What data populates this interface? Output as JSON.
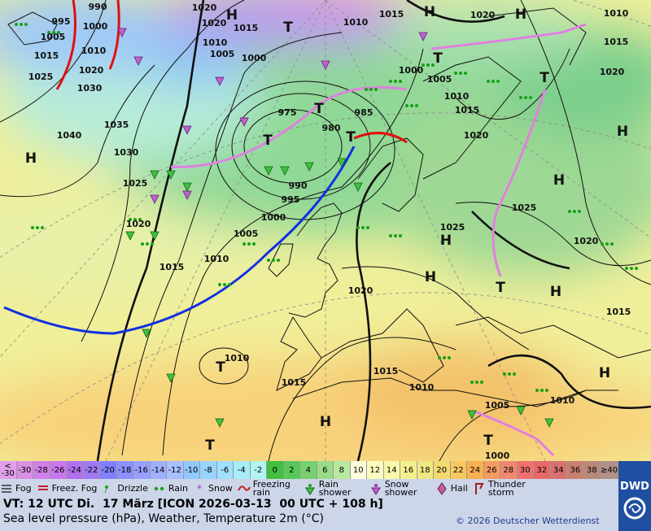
{
  "map": {
    "pressure_labels": [
      "990",
      "1000",
      "995",
      "1005",
      "1015",
      "1010",
      "1025",
      "1020",
      "1030",
      "1035",
      "1040",
      "1030",
      "1025",
      "1020",
      "1015",
      "1010",
      "1005",
      "1000",
      "995",
      "990",
      "980",
      "975",
      "985",
      "1000",
      "1005",
      "1010",
      "1020",
      "1020",
      "1015",
      "1010",
      "1015",
      "1020",
      "1010",
      "1015",
      "1020",
      "1000",
      "1005",
      "1010",
      "1015",
      "1020",
      "1025",
      "1025",
      "1020",
      "1015",
      "1020",
      "1015",
      "1015",
      "1010",
      "1010",
      "1005",
      "1000",
      "1010"
    ],
    "centers": [
      "H",
      "H",
      "T",
      "H",
      "H",
      "T",
      "T",
      "T",
      "T",
      "T",
      "H",
      "H",
      "H",
      "H",
      "T",
      "H",
      "T",
      "H",
      "T",
      "T",
      "H"
    ]
  },
  "scale": [
    {
      "label": "< -30",
      "color": "#e0a0e8"
    },
    {
      "label": "-30",
      "color": "#d890e4"
    },
    {
      "label": "-28",
      "color": "#d080e8"
    },
    {
      "label": "-26",
      "color": "#c878ec"
    },
    {
      "label": "-24",
      "color": "#b070f0"
    },
    {
      "label": "-22",
      "color": "#a078f4"
    },
    {
      "label": "-20",
      "color": "#8080ff"
    },
    {
      "label": "-18",
      "color": "#8c90ff"
    },
    {
      "label": "-16",
      "color": "#98a0ff"
    },
    {
      "label": "-14",
      "color": "#a0b0ff"
    },
    {
      "label": "-12",
      "color": "#a8c0ff"
    },
    {
      "label": "-10",
      "color": "#90c8ff"
    },
    {
      "label": "-8",
      "color": "#98d4ff"
    },
    {
      "label": "-6",
      "color": "#a0e0ff"
    },
    {
      "label": "-4",
      "color": "#a8ecf8"
    },
    {
      "label": "-2",
      "color": "#b0f4f0"
    },
    {
      "label": "0",
      "color": "#40c040"
    },
    {
      "label": "2",
      "color": "#58c858"
    },
    {
      "label": "4",
      "color": "#78d070"
    },
    {
      "label": "6",
      "color": "#98dc88"
    },
    {
      "label": "8",
      "color": "#b8e8a0"
    },
    {
      "label": "10",
      "color": "#ffffe0"
    },
    {
      "label": "12",
      "color": "#fcfcc0"
    },
    {
      "label": "14",
      "color": "#f8f8a8"
    },
    {
      "label": "16",
      "color": "#f4f090"
    },
    {
      "label": "18",
      "color": "#f0e880"
    },
    {
      "label": "20",
      "color": "#f4d870"
    },
    {
      "label": "22",
      "color": "#f8c860"
    },
    {
      "label": "24",
      "color": "#f8b050"
    },
    {
      "label": "26",
      "color": "#f49c60"
    },
    {
      "label": "28",
      "color": "#f08870"
    },
    {
      "label": "30",
      "color": "#f07070"
    },
    {
      "label": "32",
      "color": "#e86868"
    },
    {
      "label": "34",
      "color": "#d87070"
    },
    {
      "label": "36",
      "color": "#c88070"
    },
    {
      "label": "38",
      "color": "#b88878"
    },
    {
      "label": "≥40",
      "color": "#b09088"
    }
  ],
  "legend": [
    "Fog",
    "Freez. Fog",
    "Drizzle",
    "Rain",
    "Snow",
    "Freezing rain",
    "Rain shower",
    "Snow shower",
    "Hail",
    "Thunder storm"
  ],
  "footer": {
    "valid_time": "VT: 12 UTC Di.  17 März [ICON 2026-03-13  00 UTC + 108 h]",
    "description": "Sea level pressure (hPa), Weather, Temperature 2m (°C)",
    "copyright": "© 2026 Deutscher Wetterdienst",
    "logo": "DWD"
  }
}
